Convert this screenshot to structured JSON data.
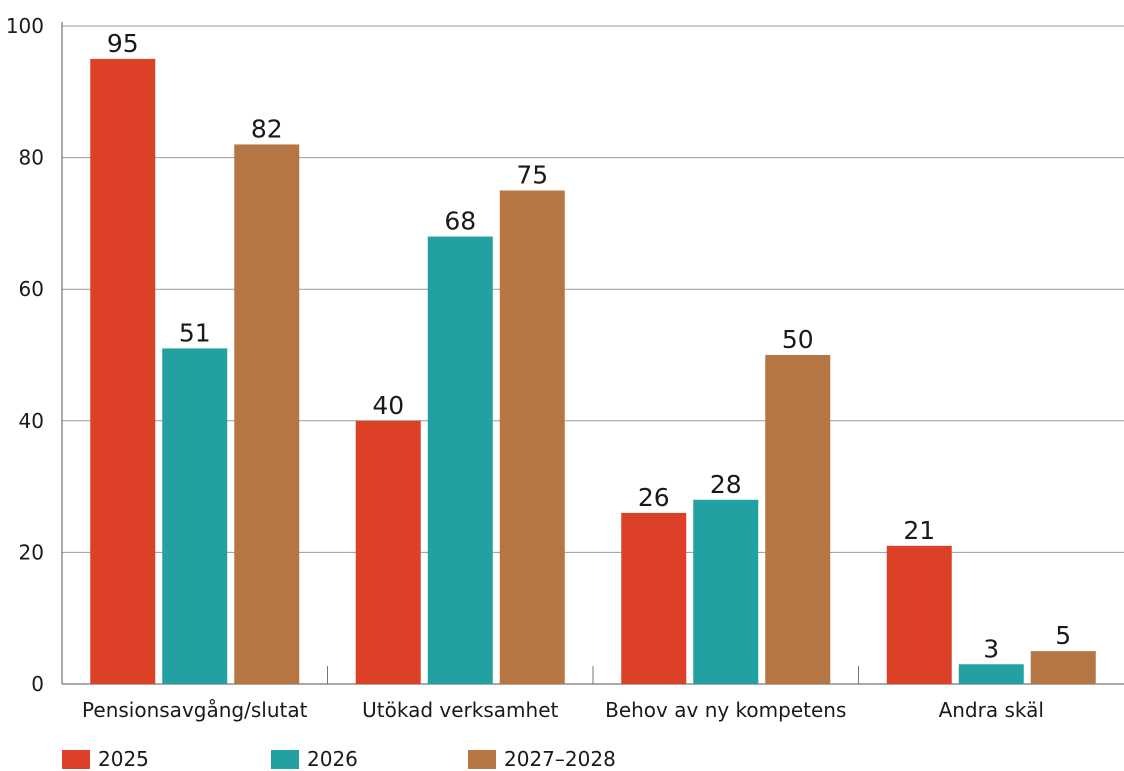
{
  "chart_data": {
    "type": "bar",
    "categories": [
      "Pensionsavgång/slutat",
      "Utökad verksamhet",
      "Behov av ny kompetens",
      "Andra skäl"
    ],
    "series": [
      {
        "name": "2025",
        "color": "#dc4128",
        "values": [
          95,
          40,
          26,
          21
        ]
      },
      {
        "name": "2026",
        "color": "#22a0a2",
        "values": [
          51,
          68,
          28,
          3
        ]
      },
      {
        "name": "2027–2028",
        "color": "#b57643",
        "values": [
          82,
          75,
          50,
          5
        ]
      }
    ],
    "ylim": [
      0,
      100
    ],
    "yticks": [
      0,
      20,
      40,
      60,
      80,
      100
    ],
    "grid": true,
    "legend_position": "bottom-left",
    "title": "",
    "xlabel": "",
    "ylabel": ""
  }
}
